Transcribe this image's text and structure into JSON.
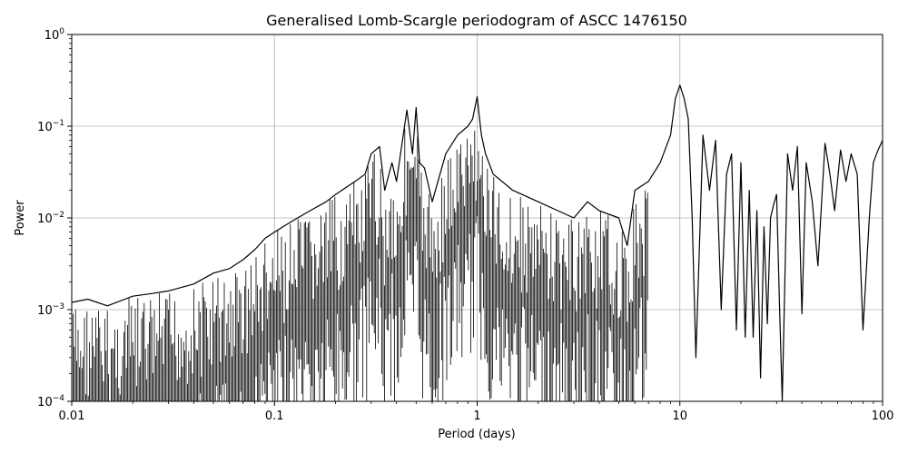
{
  "chart_data": {
    "type": "line",
    "title": "Generalised Lomb-Scargle periodogram of ASCC 1476150",
    "xlabel": "Period (days)",
    "ylabel": "Power",
    "xscale": "log",
    "yscale": "log",
    "xlim": [
      0.01,
      100
    ],
    "ylim": [
      0.0001,
      1
    ],
    "grid": true,
    "legend": "none",
    "line_color": "#000000",
    "x_ticks": [
      {
        "value": 0.01,
        "label": "0.01"
      },
      {
        "value": 0.1,
        "label": "0.1"
      },
      {
        "value": 1,
        "label": "1"
      },
      {
        "value": 10,
        "label": "10"
      },
      {
        "value": 100,
        "label": "100"
      }
    ],
    "y_ticks": [
      {
        "value": 0.0001,
        "base": "10",
        "exp": "−4"
      },
      {
        "value": 0.001,
        "base": "10",
        "exp": "−3"
      },
      {
        "value": 0.01,
        "base": "10",
        "exp": "−2"
      },
      {
        "value": 0.1,
        "base": "10",
        "exp": "−1"
      },
      {
        "value": 1,
        "base": "10",
        "exp": "0"
      }
    ],
    "series": [
      {
        "x": [
          0.01,
          0.012,
          0.015,
          0.02,
          0.025,
          0.03,
          0.04,
          0.05,
          0.06,
          0.07,
          0.08,
          0.09,
          0.1,
          0.12,
          0.15,
          0.18,
          0.2,
          0.25,
          0.28,
          0.3,
          0.33,
          0.35,
          0.38,
          0.4,
          0.45,
          0.48,
          0.5,
          0.52,
          0.55,
          0.6,
          0.7,
          0.8,
          0.9,
          0.95,
          1.0,
          1.05,
          1.1,
          1.2,
          1.5,
          2.0,
          2.5,
          3.0,
          3.5,
          4.0,
          5.0,
          5.5,
          6.0,
          7.0,
          8.0,
          9.0,
          9.5,
          10.0,
          10.5,
          11.0,
          11.5,
          12.0,
          13.0,
          14.0,
          15.0,
          16.0,
          17.0,
          18.0,
          19.0,
          20.0,
          21.0,
          22.0,
          23.0,
          24.0,
          25.0,
          26.0,
          27.0,
          28.0,
          29.0,
          30.0,
          31.0,
          32.0,
          34.0,
          36.0,
          38.0,
          40.0,
          42.0,
          45.0,
          48.0,
          52.0,
          55.0,
          58.0,
          62.0,
          66.0,
          70.0,
          75.0,
          80.0,
          86.0,
          90.0,
          95.0,
          100.0
        ],
        "y": [
          0.0012,
          0.0013,
          0.0011,
          0.0014,
          0.0015,
          0.0016,
          0.0019,
          0.0025,
          0.0028,
          0.0035,
          0.0045,
          0.006,
          0.007,
          0.009,
          0.012,
          0.015,
          0.018,
          0.025,
          0.03,
          0.05,
          0.06,
          0.02,
          0.04,
          0.025,
          0.15,
          0.05,
          0.16,
          0.04,
          0.035,
          0.015,
          0.05,
          0.08,
          0.1,
          0.12,
          0.21,
          0.08,
          0.05,
          0.03,
          0.02,
          0.015,
          0.012,
          0.01,
          0.015,
          0.012,
          0.01,
          0.005,
          0.02,
          0.025,
          0.04,
          0.08,
          0.2,
          0.28,
          0.2,
          0.12,
          0.01,
          0.0003,
          0.08,
          0.02,
          0.07,
          0.001,
          0.03,
          0.05,
          0.0006,
          0.04,
          0.0005,
          0.02,
          0.0005,
          0.012,
          0.00018,
          0.008,
          0.0007,
          0.01,
          0.014,
          0.018,
          0.0012,
          0.0001,
          0.05,
          0.02,
          0.06,
          0.0009,
          0.04,
          0.015,
          0.003,
          0.065,
          0.03,
          0.012,
          0.055,
          0.025,
          0.05,
          0.03,
          0.0006,
          0.01,
          0.04,
          0.055,
          0.07
        ]
      }
    ]
  }
}
